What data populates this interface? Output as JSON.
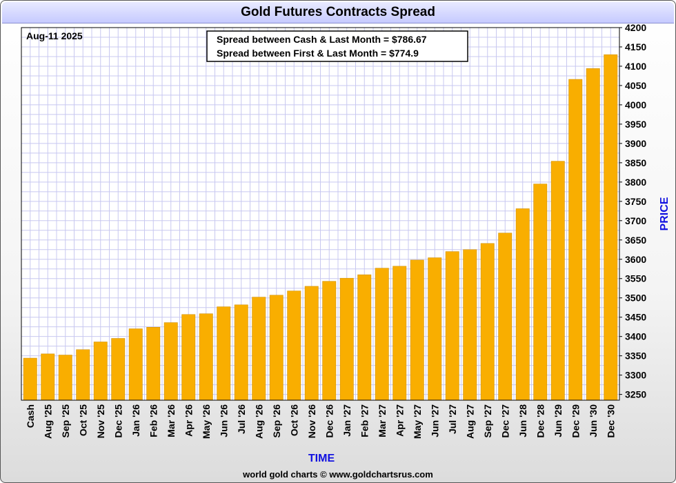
{
  "title": "Gold Futures Contracts Spread",
  "date_label": "Aug-11  2025",
  "spread_box": {
    "line1": "Spread between Cash & Last Month = $786.67",
    "line2": "Spread between First & Last Month = $774.9"
  },
  "footer": "world gold charts © www.goldchartsrus.com",
  "colors": {
    "bar": "#f9ae00",
    "grid": "#c8c8f0",
    "axis_title": "#1010e0",
    "title_bar": "#c6caff"
  },
  "chart_data": {
    "type": "bar",
    "title": "Gold Futures Contracts Spread",
    "xlabel": "TIME",
    "ylabel": "PRICE",
    "ylim": [
      3235,
      4200
    ],
    "yticks": [
      3250,
      3300,
      3350,
      3400,
      3450,
      3500,
      3550,
      3600,
      3650,
      3700,
      3750,
      3800,
      3850,
      3900,
      3950,
      4000,
      4050,
      4100,
      4150,
      4200
    ],
    "grid": true,
    "categories": [
      "Cash",
      "Aug '25",
      "Sep '25",
      "Oct '25",
      "Nov '25",
      "Dec '25",
      "Jan '26",
      "Feb '26",
      "Mar '26",
      "Apr '26",
      "May '26",
      "Jun '26",
      "Jul '26",
      "Aug '26",
      "Sep '26",
      "Oct '26",
      "Nov '26",
      "Dec '26",
      "Jan '27",
      "Feb '27",
      "Mar '27",
      "Apr '27",
      "May '27",
      "Jun '27",
      "Jul '27",
      "Aug '27",
      "Sep '27",
      "Dec '27",
      "Jun '28",
      "Dec '28",
      "Jun '29",
      "Dec '29",
      "Jun '30",
      "Dec '30"
    ],
    "values": [
      3344,
      3355,
      3352,
      3366,
      3386,
      3395,
      3420,
      3424,
      3436,
      3457,
      3459,
      3477,
      3482,
      3502,
      3507,
      3518,
      3530,
      3543,
      3551,
      3560,
      3577,
      3582,
      3598,
      3604,
      3620,
      3625,
      3641,
      3668,
      3731,
      3795,
      3854,
      4066,
      4094,
      4130
    ]
  }
}
